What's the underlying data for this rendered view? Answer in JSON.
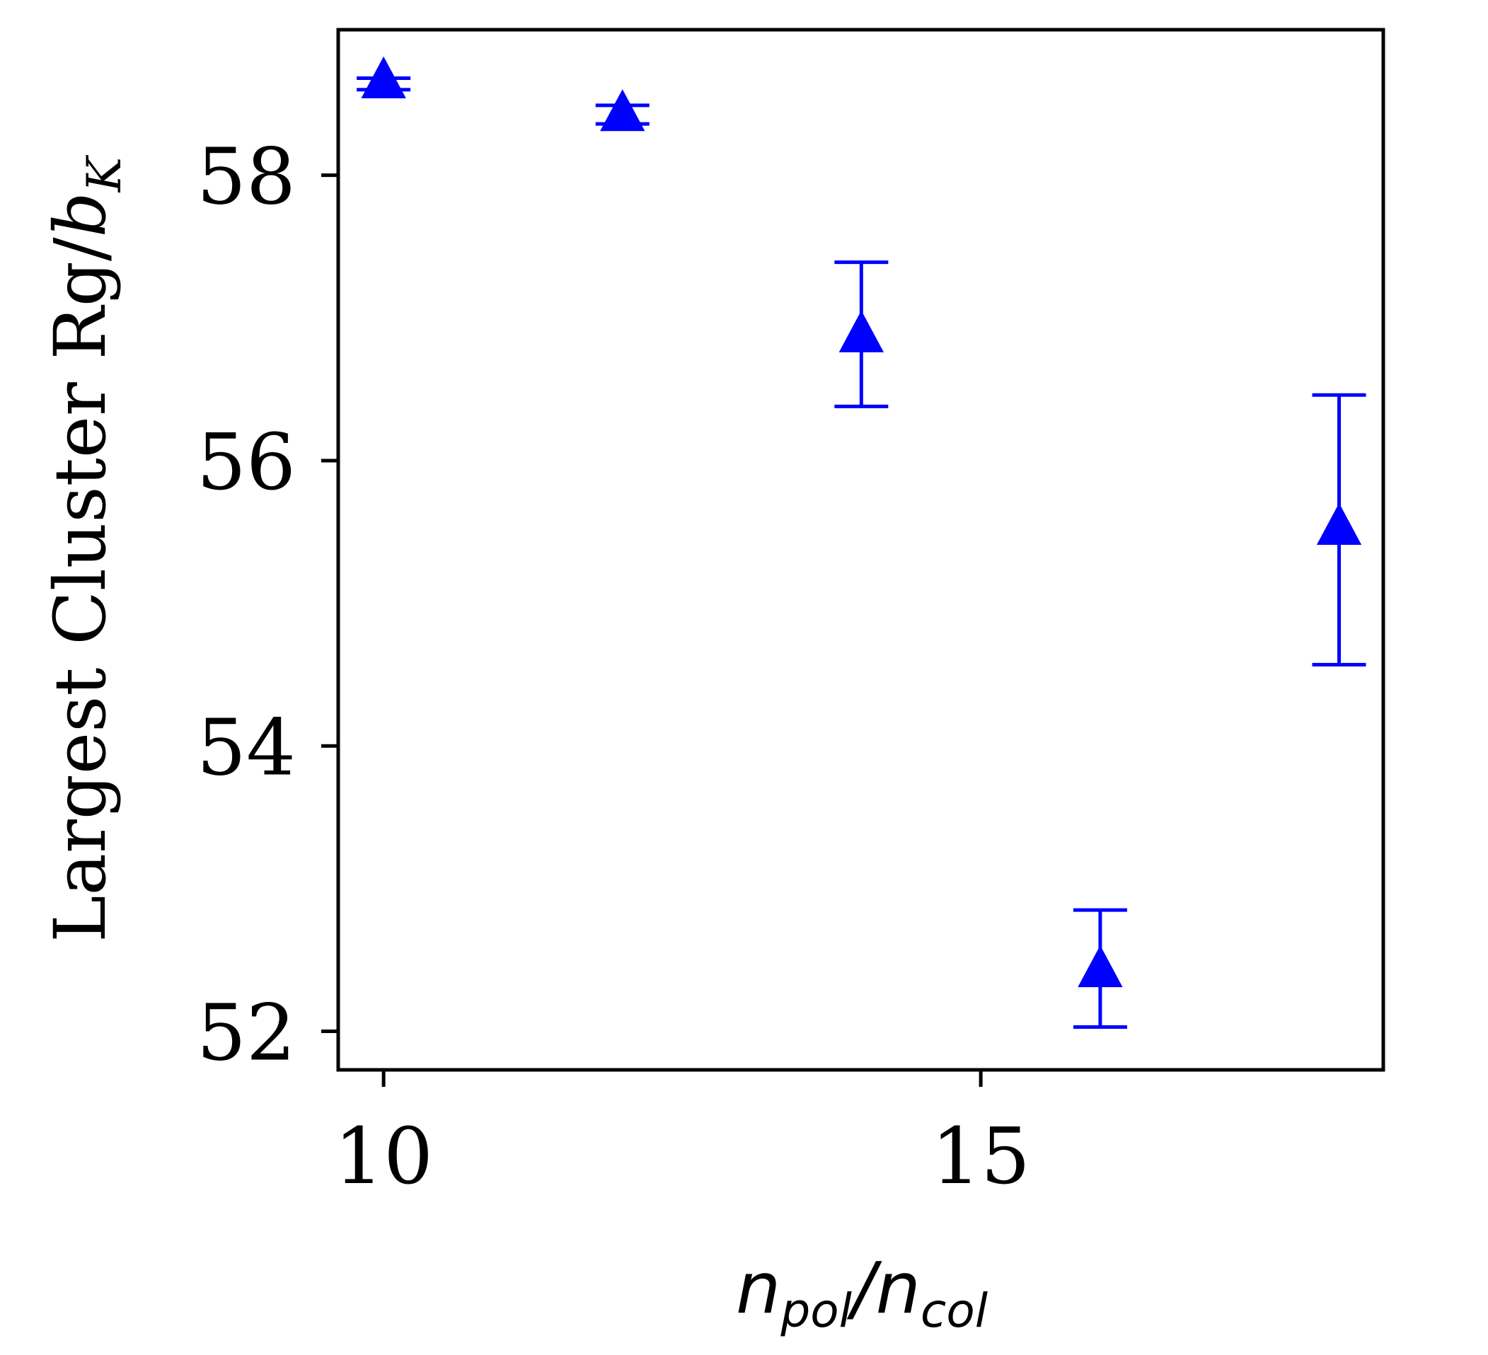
{
  "chart_data": {
    "type": "scatter",
    "xlabel": {
      "base": "n",
      "sub1": "pol",
      "slash": "/",
      "base2": "n",
      "sub2": "col"
    },
    "ylabel": {
      "prefix": "Largest Cluster Rg/",
      "base": "b",
      "sub": "K"
    },
    "xlim": [
      9.62,
      18.37
    ],
    "ylim": [
      51.73,
      59.02
    ],
    "x_ticks": [
      10,
      15
    ],
    "x_tick_labels": [
      "10",
      "15"
    ],
    "y_ticks": [
      52,
      54,
      56,
      58
    ],
    "y_tick_labels": [
      "52",
      "54",
      "56",
      "58"
    ],
    "grid": false,
    "legend": "none",
    "marker": "triangle-up",
    "color": "#0000ff",
    "series": [
      {
        "x": [
          10,
          12,
          14,
          16,
          18
        ],
        "y": [
          58.65,
          58.42,
          56.87,
          52.42,
          55.52
        ],
        "yerr_low": [
          58.6,
          58.36,
          56.38,
          52.03,
          54.57
        ],
        "yerr_high": [
          58.68,
          58.49,
          57.39,
          52.85,
          56.46
        ]
      }
    ]
  }
}
